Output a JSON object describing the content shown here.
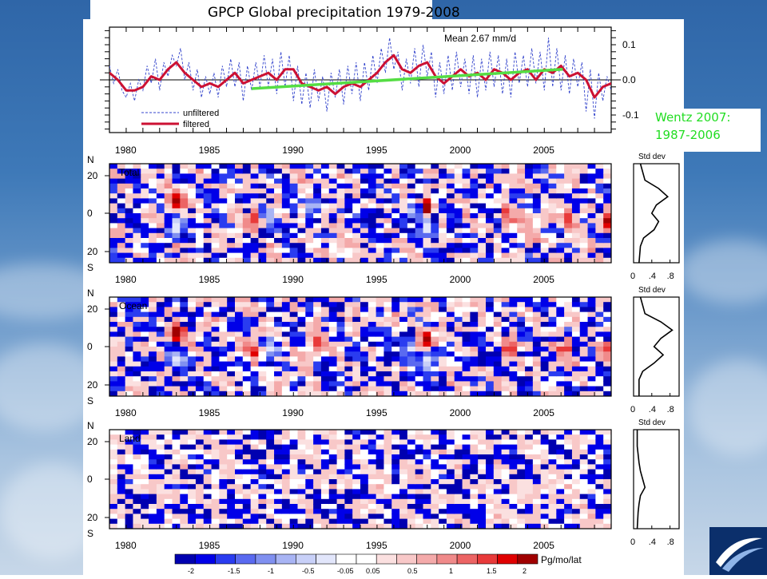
{
  "slide": {
    "title": "GPCP Global precipitation 1979-2008",
    "callout_line1": "Wentz 2007:",
    "callout_line2": "1987-2006"
  },
  "chart_data": [
    {
      "type": "line",
      "mean_label": "Mean 2.67 mm/d",
      "ylim": [
        -0.15,
        0.15
      ],
      "yticks": [
        "0.1",
        "0.0",
        "-0.1"
      ],
      "ytick_values": [
        0.1,
        0.0,
        -0.1
      ],
      "xlim": [
        1979,
        2009
      ],
      "xticks": [
        "1980",
        "1985",
        "1990",
        "1995",
        "2000",
        "2005"
      ],
      "legend": [
        "unfiltered",
        "filtered"
      ],
      "series": [
        {
          "name": "filtered",
          "color": "#cc1133",
          "x": [
            1979,
            1979.5,
            1980,
            1980.5,
            1981,
            1981.5,
            1982,
            1982.5,
            1983,
            1983.5,
            1984,
            1984.5,
            1985,
            1985.5,
            1986,
            1986.5,
            1987,
            1987.5,
            1988,
            1988.5,
            1989,
            1989.5,
            1990,
            1990.5,
            1991,
            1991.5,
            1992,
            1992.5,
            1993,
            1993.5,
            1994,
            1994.5,
            1995,
            1995.5,
            1996,
            1996.5,
            1997,
            1997.5,
            1998,
            1998.5,
            1999,
            1999.5,
            2000,
            2000.5,
            2001,
            2001.5,
            2002,
            2002.5,
            2003,
            2003.5,
            2004,
            2004.5,
            2005,
            2005.5,
            2006,
            2006.5,
            2007,
            2007.5,
            2008,
            2008.5,
            2009
          ],
          "y": [
            0.02,
            0.0,
            -0.03,
            -0.03,
            -0.02,
            0.01,
            0.0,
            0.03,
            0.05,
            0.02,
            0.0,
            -0.02,
            -0.01,
            -0.02,
            0.0,
            0.02,
            -0.01,
            0.0,
            0.01,
            0.02,
            0.0,
            0.03,
            0.03,
            -0.01,
            -0.02,
            -0.03,
            -0.02,
            -0.04,
            -0.02,
            -0.01,
            -0.02,
            0.0,
            0.02,
            0.05,
            0.07,
            0.03,
            0.02,
            0.04,
            0.05,
            0.01,
            -0.01,
            0.01,
            0.03,
            0.01,
            0.02,
            0.0,
            0.03,
            0.02,
            0.0,
            0.02,
            0.03,
            0.0,
            0.03,
            0.02,
            0.04,
            0.01,
            0.02,
            0.0,
            -0.05,
            -0.02,
            -0.01
          ]
        },
        {
          "name": "unfiltered",
          "color": "#3344cc",
          "x": [
            1979,
            1979.25,
            1979.5,
            1979.75,
            1980,
            1980.25,
            1980.5,
            1980.75,
            1981,
            1981.25,
            1981.5,
            1981.75,
            1982,
            1982.25,
            1982.5,
            1982.75,
            1983,
            1983.25,
            1983.5,
            1983.75,
            1984,
            1984.25,
            1984.5,
            1984.75,
            1985,
            1985.25,
            1985.5,
            1985.75,
            1986,
            1986.25,
            1986.5,
            1986.75,
            1987,
            1987.25,
            1987.5,
            1987.75,
            1988,
            1988.25,
            1988.5,
            1988.75,
            1989,
            1989.25,
            1989.5,
            1989.75,
            1990,
            1990.25,
            1990.5,
            1990.75,
            1991,
            1991.25,
            1991.5,
            1991.75,
            1992,
            1992.25,
            1992.5,
            1992.75,
            1993,
            1993.25,
            1993.5,
            1993.75,
            1994,
            1994.25,
            1994.5,
            1994.75,
            1995,
            1995.25,
            1995.5,
            1995.75,
            1996,
            1996.25,
            1996.5,
            1996.75,
            1997,
            1997.25,
            1997.5,
            1997.75,
            1998,
            1998.25,
            1998.5,
            1998.75,
            1999,
            1999.25,
            1999.5,
            1999.75,
            2000,
            2000.25,
            2000.5,
            2000.75,
            2001,
            2001.25,
            2001.5,
            2001.75,
            2002,
            2002.25,
            2002.5,
            2002.75,
            2003,
            2003.25,
            2003.5,
            2003.75,
            2004,
            2004.25,
            2004.5,
            2004.75,
            2005,
            2005.25,
            2005.5,
            2005.75,
            2006,
            2006.25,
            2006.5,
            2006.75,
            2007,
            2007.25,
            2007.5,
            2007.75,
            2008,
            2008.25,
            2008.5,
            2008.75,
            2009
          ],
          "y": [
            0.04,
            -0.01,
            0.03,
            -0.03,
            -0.05,
            -0.01,
            -0.06,
            0.0,
            -0.03,
            0.04,
            -0.01,
            0.06,
            -0.03,
            0.05,
            0.01,
            0.07,
            0.04,
            0.09,
            0.0,
            0.05,
            -0.03,
            0.03,
            -0.05,
            0.01,
            -0.04,
            0.02,
            -0.05,
            0.04,
            -0.02,
            0.06,
            -0.02,
            0.05,
            -0.06,
            0.04,
            -0.03,
            0.05,
            -0.02,
            0.07,
            -0.02,
            0.06,
            -0.04,
            0.08,
            -0.02,
            0.07,
            -0.06,
            0.04,
            -0.07,
            0.02,
            -0.08,
            0.03,
            -0.06,
            0.01,
            -0.09,
            0.02,
            -0.05,
            0.03,
            -0.07,
            0.04,
            -0.04,
            0.05,
            -0.06,
            0.05,
            -0.03,
            0.07,
            -0.01,
            0.09,
            0.02,
            0.12,
            0.03,
            0.08,
            -0.03,
            0.06,
            -0.01,
            0.09,
            -0.02,
            0.1,
            0.01,
            0.08,
            -0.05,
            0.05,
            -0.04,
            0.07,
            -0.03,
            0.08,
            -0.02,
            0.06,
            -0.04,
            0.07,
            -0.05,
            0.06,
            -0.03,
            0.08,
            -0.02,
            0.07,
            -0.04,
            0.06,
            -0.05,
            0.08,
            -0.01,
            0.07,
            -0.02,
            0.09,
            -0.01,
            0.08,
            -0.03,
            0.12,
            -0.02,
            0.09,
            -0.03,
            0.07,
            -0.04,
            0.06,
            -0.02,
            0.05,
            -0.09,
            0.03,
            -0.11,
            0.02,
            -0.06,
            0.01,
            -0.03
          ]
        },
        {
          "name": "",
          "color": "#55dd44",
          "x": [
            1987.5,
            2006.1
          ],
          "y": [
            -0.025,
            0.03
          ]
        }
      ]
    },
    {
      "type": "heatmap",
      "label": "Total",
      "xlim": [
        1979,
        2009
      ],
      "ylim": [
        -30,
        30
      ],
      "yticks": [
        "N",
        "20",
        "0",
        "20",
        "S"
      ],
      "xticks": [
        "1980",
        "1985",
        "1990",
        "1995",
        "2000",
        "2005"
      ],
      "anomalies": [
        {
          "t": 1983.0,
          "lat": 8,
          "v": 2.0
        },
        {
          "t": 1983.0,
          "lat": -8,
          "v": -2.0
        },
        {
          "t": 1987.6,
          "lat": -4,
          "v": 1.5
        },
        {
          "t": 1988.6,
          "lat": -2,
          "v": -1.0
        },
        {
          "t": 1991.2,
          "lat": 4,
          "v": -1.0
        },
        {
          "t": 1997.2,
          "lat": 2,
          "v": -1.5
        },
        {
          "t": 1998.0,
          "lat": 4,
          "v": 2.0
        },
        {
          "t": 1998.0,
          "lat": -8,
          "v": -2.0
        },
        {
          "t": 2002.8,
          "lat": -2,
          "v": 1.0
        },
        {
          "t": 2006.5,
          "lat": -2,
          "v": 1.0
        },
        {
          "t": 2008.8,
          "lat": -6,
          "v": 1.5
        }
      ],
      "std_label": "Std dev",
      "std_ticks": [
        "0",
        ".4",
        ".8"
      ],
      "std_lat": [
        -30,
        -20,
        -15,
        -10,
        -5,
        0,
        5,
        10,
        15,
        20,
        30
      ],
      "std_value": [
        0.12,
        0.15,
        0.22,
        0.45,
        0.55,
        0.4,
        0.5,
        0.75,
        0.55,
        0.25,
        0.15
      ]
    },
    {
      "type": "heatmap",
      "label": "Ocean",
      "xlim": [
        1979,
        2009
      ],
      "ylim": [
        -30,
        30
      ],
      "yticks": [
        "N",
        "20",
        "0",
        "20",
        "S"
      ],
      "xticks": [
        "1980",
        "1985",
        "1990",
        "1995",
        "2000",
        "2005"
      ],
      "anomalies": [
        {
          "t": 1983.0,
          "lat": 8,
          "v": 2.0
        },
        {
          "t": 1983.0,
          "lat": -8,
          "v": -2.0
        },
        {
          "t": 1987.6,
          "lat": -2,
          "v": 1.5
        },
        {
          "t": 1988.7,
          "lat": -1,
          "v": -1.5
        },
        {
          "t": 1991.5,
          "lat": 1,
          "v": 1.0
        },
        {
          "t": 1997.0,
          "lat": 0,
          "v": -1.5
        },
        {
          "t": 1998.0,
          "lat": 4,
          "v": 2.0
        },
        {
          "t": 1998.0,
          "lat": -8,
          "v": -2.0
        },
        {
          "t": 2002.8,
          "lat": -2,
          "v": 1.0
        },
        {
          "t": 2006.3,
          "lat": -1,
          "v": 1.0
        },
        {
          "t": 2008.6,
          "lat": -2,
          "v": 1.0
        }
      ],
      "std_label": "Std dev",
      "std_ticks": [
        "0",
        ".4",
        ".8"
      ],
      "std_lat": [
        -30,
        -20,
        -15,
        -10,
        -5,
        0,
        5,
        10,
        15,
        20,
        30
      ],
      "std_value": [
        0.12,
        0.12,
        0.2,
        0.45,
        0.65,
        0.45,
        0.6,
        0.85,
        0.6,
        0.25,
        0.15
      ]
    },
    {
      "type": "heatmap",
      "label": "Land",
      "xlim": [
        1979,
        2009
      ],
      "ylim": [
        -30,
        30
      ],
      "yticks": [
        "N",
        "20",
        "0",
        "20",
        "S"
      ],
      "xticks": [
        "1980",
        "1985",
        "1990",
        "1995",
        "2000",
        "2005"
      ],
      "anomalies": [],
      "std_label": "Std dev",
      "std_ticks": [
        "0",
        ".4",
        ".8"
      ],
      "std_lat": [
        -30,
        -20,
        -15,
        -10,
        -5,
        0,
        5,
        10,
        15,
        20,
        30
      ],
      "std_value": [
        0.08,
        0.1,
        0.12,
        0.15,
        0.25,
        0.2,
        0.15,
        0.12,
        0.1,
        0.08,
        0.08
      ]
    },
    {
      "type": "colorbar",
      "unit_label": "Pg/mo/lat",
      "tick_labels": [
        "-2",
        "-1.5",
        "-1",
        "-0.5",
        "-0.05",
        "0.05",
        "0.5",
        "1",
        "1.5",
        "2"
      ],
      "colors": [
        "#0000b0",
        "#0000e8",
        "#2a3cf0",
        "#5a6af0",
        "#8090f0",
        "#a8b4f4",
        "#c8d0f8",
        "#e2e6fb",
        "#ffffff",
        "#ffffff",
        "#fbe0e0",
        "#f8c8c8",
        "#f4aaaa",
        "#f08a8a",
        "#ec6464",
        "#e83a3a",
        "#e00000",
        "#a00000"
      ]
    }
  ]
}
